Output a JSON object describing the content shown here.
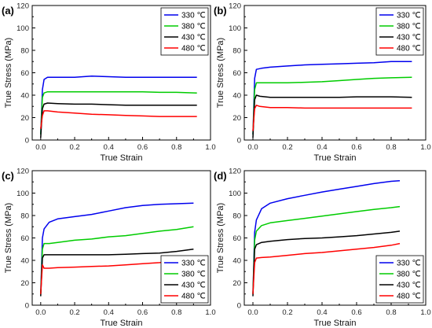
{
  "chart_data": [
    {
      "type": "line",
      "panel_label": "(a)",
      "xlabel": "True Strain",
      "ylabel": "True Stress (MPa)",
      "xlim": [
        -0.05,
        1.0
      ],
      "ylim": [
        0,
        120
      ],
      "xticks": [
        0.0,
        0.2,
        0.4,
        0.6,
        0.8,
        1.0
      ],
      "yticks": [
        0,
        20,
        40,
        60,
        80,
        100,
        120
      ],
      "legend_position": "top-right",
      "series": [
        {
          "name": "330 ℃",
          "color": "#0000ee",
          "x": [
            0,
            0.01,
            0.02,
            0.04,
            0.1,
            0.2,
            0.3,
            0.4,
            0.5,
            0.6,
            0.7,
            0.8,
            0.92
          ],
          "y": [
            5,
            45,
            54,
            56,
            56,
            56,
            57,
            56.5,
            56,
            56,
            56,
            56,
            56
          ]
        },
        {
          "name": "380 ℃",
          "color": "#00cc00",
          "x": [
            0,
            0.01,
            0.02,
            0.04,
            0.1,
            0.2,
            0.3,
            0.4,
            0.5,
            0.6,
            0.7,
            0.8,
            0.92
          ],
          "y": [
            5,
            38,
            42,
            43,
            43,
            43,
            43,
            43,
            43,
            43,
            42.5,
            42.5,
            42
          ]
        },
        {
          "name": "430 ℃",
          "color": "#000000",
          "x": [
            0,
            0.01,
            0.02,
            0.04,
            0.1,
            0.2,
            0.3,
            0.4,
            0.5,
            0.6,
            0.7,
            0.8,
            0.92
          ],
          "y": [
            2,
            28,
            32,
            33,
            32.5,
            32,
            32,
            31.5,
            31,
            31,
            31,
            31,
            31
          ]
        },
        {
          "name": "480 ℃",
          "color": "#ff0000",
          "x": [
            0,
            0.01,
            0.02,
            0.04,
            0.1,
            0.2,
            0.3,
            0.4,
            0.5,
            0.6,
            0.7,
            0.8,
            0.92
          ],
          "y": [
            10,
            22,
            26,
            26,
            25,
            24,
            23,
            22.5,
            22,
            21.5,
            21,
            21,
            21
          ]
        }
      ]
    },
    {
      "type": "line",
      "panel_label": "(b)",
      "xlabel": "True Strain",
      "ylabel": "True Stress (MPa)",
      "xlim": [
        -0.05,
        1.0
      ],
      "ylim": [
        0,
        120
      ],
      "xticks": [
        0.0,
        0.2,
        0.4,
        0.6,
        0.8,
        1.0
      ],
      "yticks": [
        0,
        20,
        40,
        60,
        80,
        100,
        120
      ],
      "legend_position": "top-right",
      "series": [
        {
          "name": "330 ℃",
          "color": "#0000ee",
          "x": [
            0,
            0.01,
            0.02,
            0.05,
            0.1,
            0.2,
            0.3,
            0.4,
            0.5,
            0.6,
            0.7,
            0.8,
            0.92
          ],
          "y": [
            5,
            55,
            63,
            64,
            65,
            66,
            67,
            67.5,
            68,
            68.5,
            69,
            70,
            70
          ]
        },
        {
          "name": "380 ℃",
          "color": "#00cc00",
          "x": [
            0,
            0.01,
            0.02,
            0.05,
            0.1,
            0.2,
            0.3,
            0.4,
            0.5,
            0.6,
            0.7,
            0.8,
            0.92
          ],
          "y": [
            5,
            45,
            51,
            51,
            51,
            51,
            51.5,
            52,
            53,
            54,
            55,
            55.5,
            56
          ]
        },
        {
          "name": "430 ℃",
          "color": "#000000",
          "x": [
            0,
            0.01,
            0.02,
            0.04,
            0.1,
            0.2,
            0.3,
            0.4,
            0.5,
            0.6,
            0.7,
            0.8,
            0.92
          ],
          "y": [
            2,
            36,
            40,
            39,
            38,
            38,
            38,
            38,
            38,
            38.5,
            38.5,
            38.5,
            38
          ]
        },
        {
          "name": "480 ℃",
          "color": "#ff0000",
          "x": [
            0,
            0.01,
            0.02,
            0.04,
            0.1,
            0.2,
            0.3,
            0.4,
            0.5,
            0.6,
            0.7,
            0.8,
            0.92
          ],
          "y": [
            8,
            28,
            31,
            30,
            29,
            29,
            28.5,
            28.5,
            28.5,
            28.5,
            28.5,
            28.5,
            28.5
          ]
        }
      ]
    },
    {
      "type": "line",
      "panel_label": "(c)",
      "xlabel": "True Strain",
      "ylabel": "True Stress (MPa)",
      "xlim": [
        -0.05,
        1.0
      ],
      "ylim": [
        0,
        120
      ],
      "xticks": [
        0.0,
        0.2,
        0.4,
        0.6,
        0.8,
        1.0
      ],
      "yticks": [
        0,
        20,
        40,
        60,
        80,
        100,
        120
      ],
      "legend_position": "bottom-right",
      "series": [
        {
          "name": "330 ℃",
          "color": "#0000ee",
          "x": [
            0,
            0.01,
            0.02,
            0.05,
            0.1,
            0.2,
            0.3,
            0.4,
            0.5,
            0.6,
            0.7,
            0.8,
            0.9
          ],
          "y": [
            10,
            60,
            68,
            74,
            77,
            79,
            81,
            84,
            87,
            89,
            90,
            90.5,
            91
          ]
        },
        {
          "name": "380 ℃",
          "color": "#00cc00",
          "x": [
            0,
            0.01,
            0.02,
            0.05,
            0.1,
            0.2,
            0.3,
            0.4,
            0.5,
            0.6,
            0.7,
            0.8,
            0.9
          ],
          "y": [
            10,
            50,
            55,
            55,
            56,
            58,
            59,
            61,
            62,
            64,
            66,
            67.5,
            70
          ]
        },
        {
          "name": "430 ℃",
          "color": "#000000",
          "x": [
            0,
            0.01,
            0.02,
            0.05,
            0.1,
            0.2,
            0.3,
            0.4,
            0.5,
            0.6,
            0.7,
            0.8,
            0.9
          ],
          "y": [
            8,
            42,
            45,
            45,
            45,
            45,
            45,
            45,
            45.5,
            46,
            46.5,
            48,
            50
          ]
        },
        {
          "name": "480 ℃",
          "color": "#ff0000",
          "x": [
            0,
            0.01,
            0.02,
            0.05,
            0.1,
            0.2,
            0.3,
            0.4,
            0.5,
            0.6,
            0.7,
            0.8,
            0.9
          ],
          "y": [
            10,
            36,
            33,
            33,
            33.5,
            34,
            34.5,
            35,
            36,
            37,
            38,
            39.5,
            41
          ]
        }
      ]
    },
    {
      "type": "line",
      "panel_label": "(d)",
      "xlabel": "True Strain",
      "ylabel": "True Stress (MPa)",
      "xlim": [
        -0.05,
        1.0
      ],
      "ylim": [
        0,
        120
      ],
      "xticks": [
        0.0,
        0.2,
        0.4,
        0.6,
        0.8,
        1.0
      ],
      "yticks": [
        0,
        20,
        40,
        60,
        80,
        100,
        120
      ],
      "legend_position": "bottom-right",
      "series": [
        {
          "name": "330 ℃",
          "color": "#0000ee",
          "x": [
            0,
            0.01,
            0.02,
            0.05,
            0.1,
            0.2,
            0.3,
            0.4,
            0.5,
            0.6,
            0.7,
            0.8,
            0.85
          ],
          "y": [
            10,
            65,
            76,
            86,
            91,
            95,
            98,
            101,
            103.5,
            106,
            108.5,
            110.5,
            111
          ]
        },
        {
          "name": "380 ℃",
          "color": "#00cc00",
          "x": [
            0,
            0.01,
            0.02,
            0.05,
            0.1,
            0.2,
            0.3,
            0.4,
            0.5,
            0.6,
            0.7,
            0.8,
            0.85
          ],
          "y": [
            10,
            58,
            66,
            71,
            73.5,
            75.5,
            77.5,
            79.5,
            81.5,
            83.5,
            85.5,
            87,
            88
          ]
        },
        {
          "name": "430 ℃",
          "color": "#000000",
          "x": [
            0,
            0.01,
            0.02,
            0.05,
            0.1,
            0.2,
            0.3,
            0.4,
            0.5,
            0.6,
            0.7,
            0.8,
            0.85
          ],
          "y": [
            8,
            50,
            54,
            56,
            57,
            58.5,
            59.5,
            60,
            61,
            62,
            63.5,
            65,
            66
          ]
        },
        {
          "name": "480 ℃",
          "color": "#ff0000",
          "x": [
            0,
            0.01,
            0.02,
            0.05,
            0.1,
            0.2,
            0.3,
            0.4,
            0.5,
            0.6,
            0.7,
            0.8,
            0.85
          ],
          "y": [
            10,
            38,
            42,
            42.5,
            43,
            44.5,
            46,
            47,
            48.5,
            50,
            51.5,
            53.5,
            55
          ]
        }
      ]
    }
  ]
}
